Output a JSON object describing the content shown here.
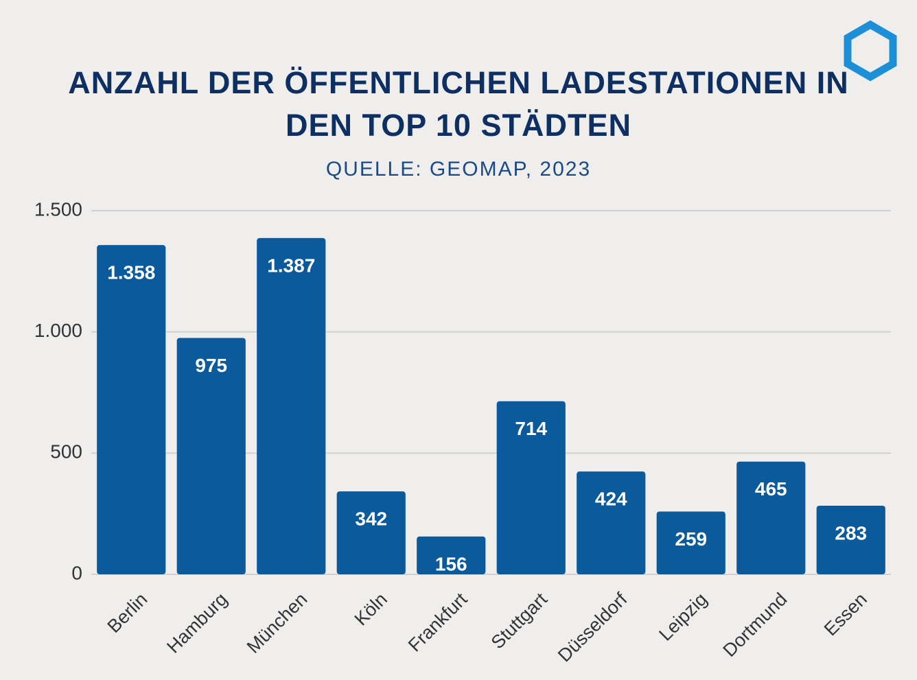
{
  "chart_data": {
    "type": "bar",
    "title": "ANZAHL DER ÖFFENTLICHEN LADESTATIONEN IN DEN TOP 10 STÄDTEN",
    "subtitle": "QUELLE: GEOMAP,  2023",
    "categories": [
      "Berlin",
      "Hamburg",
      "München",
      "Köln",
      "Frankfurt",
      "Stuttgart",
      "Düsseldorf",
      "Leipzig",
      "Dortmund",
      "Essen"
    ],
    "values": [
      1358,
      975,
      1387,
      342,
      156,
      714,
      424,
      259,
      465,
      283
    ],
    "value_labels": [
      "1.358",
      "975",
      "1.387",
      "342",
      "156",
      "714",
      "424",
      "259",
      "465",
      "283"
    ],
    "color": "#0b5a9c",
    "ylim": [
      0,
      1500
    ],
    "yticks": [
      0,
      500,
      {
        "value": 1000,
        "label": "1.000"
      },
      {
        "value": 1500,
        "label": "1.500"
      }
    ],
    "grid": true
  }
}
